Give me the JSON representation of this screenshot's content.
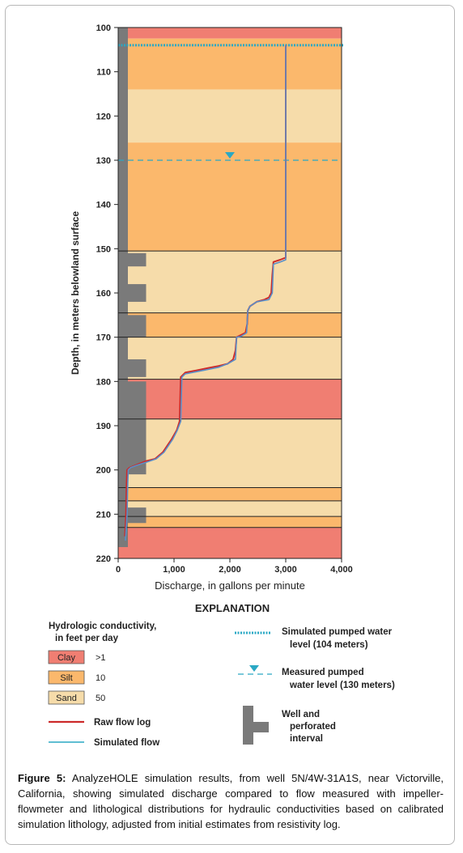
{
  "chart_data": {
    "type": "line",
    "xlabel": "Discharge, in gallons per minute",
    "ylabel": "Depth, in meters belowland surface",
    "xlim": [
      0,
      4000
    ],
    "ylim": [
      100,
      220
    ],
    "y_inverted": true,
    "x_ticks": [
      0,
      1000,
      2000,
      3000,
      4000
    ],
    "x_tick_labels": [
      "0",
      "1,000",
      "2,000",
      "3,000",
      "4,000"
    ],
    "y_ticks": [
      100,
      110,
      120,
      130,
      140,
      150,
      160,
      170,
      180,
      190,
      200,
      210,
      220
    ],
    "y_tick_labels": [
      "100",
      "110",
      "120",
      "130",
      "140",
      "150",
      "160",
      "170",
      "180",
      "190",
      "200",
      "210",
      "220"
    ],
    "lithology": [
      {
        "top": 100,
        "bottom": 102.5,
        "type": "clay"
      },
      {
        "top": 102.5,
        "bottom": 114,
        "type": "silt"
      },
      {
        "top": 114,
        "bottom": 126,
        "type": "sand"
      },
      {
        "top": 126,
        "bottom": 150.5,
        "type": "silt"
      },
      {
        "top": 150.5,
        "bottom": 164.5,
        "type": "sand"
      },
      {
        "top": 164.5,
        "bottom": 170,
        "type": "silt"
      },
      {
        "top": 170,
        "bottom": 179.5,
        "type": "sand"
      },
      {
        "top": 179.5,
        "bottom": 188.5,
        "type": "clay"
      },
      {
        "top": 188.5,
        "bottom": 204,
        "type": "sand"
      },
      {
        "top": 204,
        "bottom": 207,
        "type": "silt"
      },
      {
        "top": 207,
        "bottom": 210.5,
        "type": "sand"
      },
      {
        "top": 210.5,
        "bottom": 213,
        "type": "silt"
      },
      {
        "top": 213,
        "bottom": 220,
        "type": "clay"
      }
    ],
    "perforated_intervals": [
      [
        151,
        154
      ],
      [
        158,
        162
      ],
      [
        165,
        170
      ],
      [
        175,
        179
      ],
      [
        180,
        201
      ],
      [
        208.5,
        212
      ]
    ],
    "series": [
      {
        "name": "Raw flow log",
        "color": "#cc2a2a",
        "points": [
          [
            3000,
            104
          ],
          [
            3000,
            152
          ],
          [
            2900,
            152.5
          ],
          [
            2780,
            153
          ],
          [
            2760,
            156
          ],
          [
            2740,
            160
          ],
          [
            2700,
            161
          ],
          [
            2620,
            161.5
          ],
          [
            2480,
            162
          ],
          [
            2360,
            163
          ],
          [
            2320,
            164
          ],
          [
            2310,
            167
          ],
          [
            2280,
            169
          ],
          [
            2200,
            169.5
          ],
          [
            2120,
            170
          ],
          [
            2100,
            173
          ],
          [
            2060,
            175
          ],
          [
            1960,
            176
          ],
          [
            1800,
            176.5
          ],
          [
            1600,
            177
          ],
          [
            1400,
            177.5
          ],
          [
            1200,
            178
          ],
          [
            1120,
            179
          ],
          [
            1110,
            184
          ],
          [
            1100,
            189
          ],
          [
            1050,
            191
          ],
          [
            960,
            193
          ],
          [
            800,
            196
          ],
          [
            660,
            197.5
          ],
          [
            500,
            198
          ],
          [
            300,
            199
          ],
          [
            200,
            199.5
          ],
          [
            160,
            200
          ],
          [
            150,
            204
          ],
          [
            140,
            210
          ],
          [
            130,
            213
          ],
          [
            120,
            215
          ]
        ]
      },
      {
        "name": "Simulated flow",
        "color": "#5a8fc8",
        "points": [
          [
            3000,
            104
          ],
          [
            3000,
            152.5
          ],
          [
            2900,
            153
          ],
          [
            2780,
            153.5
          ],
          [
            2760,
            160
          ],
          [
            2700,
            161.5
          ],
          [
            2480,
            162
          ],
          [
            2360,
            163
          ],
          [
            2320,
            164
          ],
          [
            2300,
            169
          ],
          [
            2200,
            169.8
          ],
          [
            2120,
            170
          ],
          [
            2100,
            175
          ],
          [
            1960,
            176
          ],
          [
            1800,
            176.8
          ],
          [
            1600,
            177.3
          ],
          [
            1400,
            177.8
          ],
          [
            1200,
            178.3
          ],
          [
            1140,
            179
          ],
          [
            1130,
            184
          ],
          [
            1120,
            189
          ],
          [
            1060,
            191
          ],
          [
            980,
            193
          ],
          [
            820,
            196
          ],
          [
            680,
            197.5
          ],
          [
            520,
            198.2
          ],
          [
            320,
            199
          ],
          [
            220,
            199.5
          ],
          [
            180,
            200
          ],
          [
            170,
            204
          ],
          [
            160,
            210
          ],
          [
            145,
            213
          ],
          [
            130,
            216
          ]
        ]
      }
    ],
    "water_levels": {
      "simulated_pumped": 104,
      "measured_pumped": 130
    },
    "legend": {
      "title": "EXPLANATION",
      "hc_title_line1": "Hydrologic conductivity,",
      "hc_title_line2": "in feet per day",
      "clay_label": "Clay",
      "clay_value": ">1",
      "silt_label": "Silt",
      "silt_value": "10",
      "sand_label": "Sand",
      "sand_value": "50",
      "raw_flow": "Raw flow log",
      "sim_flow": "Simulated flow",
      "sim_water_line1": "Simulated pumped water",
      "sim_water_line2": "level (104 meters)",
      "meas_water_line1": "Measured pumped",
      "meas_water_line2": "water level (130 meters)",
      "well_line1": "Well and",
      "well_line2": "perforated",
      "well_line3": "interval"
    },
    "colors": {
      "clay": "#f07e72",
      "silt": "#fbb86c",
      "sand": "#f6dcaa",
      "well": "#7a7a7a",
      "water": "#2aa8c4",
      "raw": "#cc2a2a",
      "sim": "#5a8fc8"
    }
  },
  "caption": {
    "label": "Figure 5:",
    "text": " AnalyzeHOLE simulation results, from well 5N/4W-31A1S, near Victorville, California, showing simulated discharge compared to flow measured with impeller-flowmeter and lithological distributions for hydraulic conductivities based on calibrated simulation lithology, adjusted from initial estimates from resistivity log."
  }
}
